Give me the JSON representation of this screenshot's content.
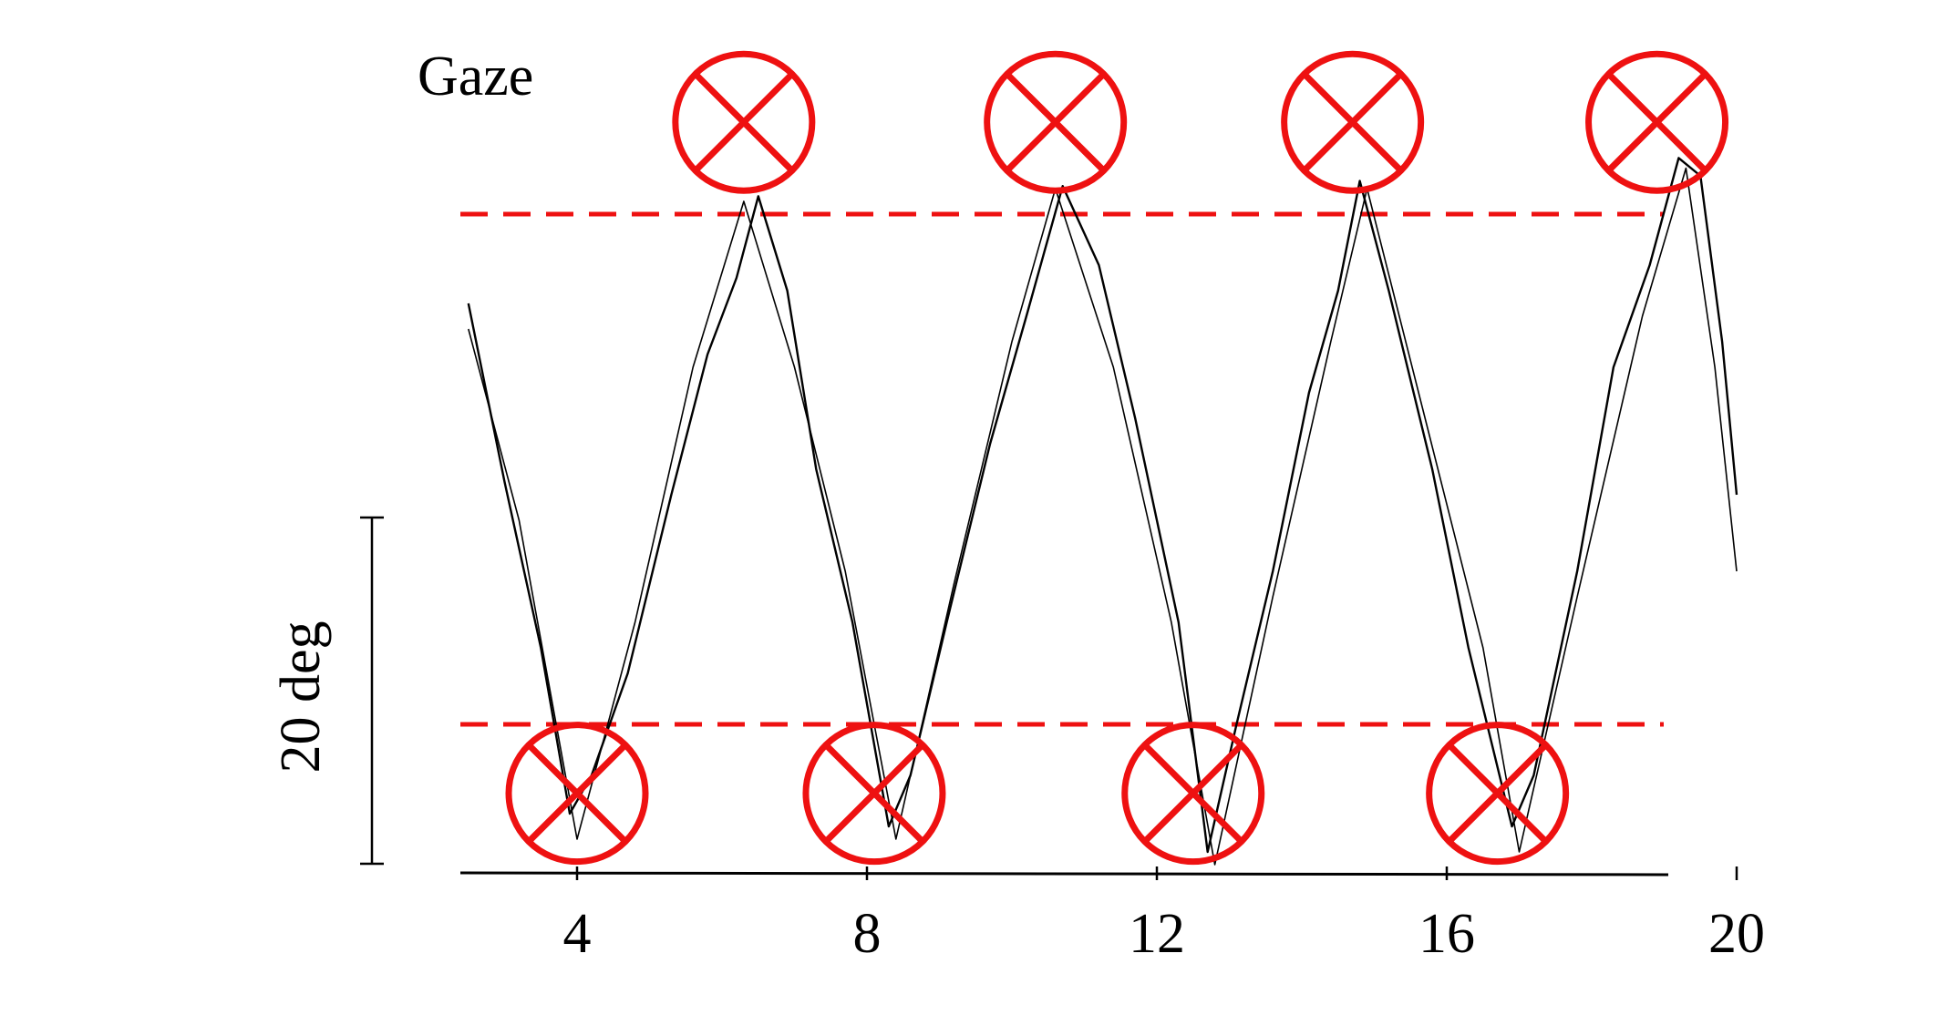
{
  "chart_data": {
    "type": "line",
    "title": "Gaze",
    "xlabel": "",
    "ylabel": "",
    "scale_bar": {
      "label": "20 deg",
      "value": 20
    },
    "x_ticks": [
      "4",
      "8",
      "12",
      "16",
      "20"
    ],
    "xlim": [
      2.5,
      20
    ],
    "ylim": [
      -26,
      6
    ],
    "grid": false,
    "series": [
      {
        "values_xy": [
          [
            2.5,
            -3.5
          ],
          [
            3.0,
            -10.5
          ],
          [
            3.5,
            -17.0
          ],
          [
            3.9,
            -23.5
          ],
          [
            4.2,
            -22.0
          ],
          [
            4.7,
            -18.0
          ],
          [
            5.3,
            -11.0
          ],
          [
            5.8,
            -5.5
          ],
          [
            6.2,
            -2.5
          ],
          [
            6.5,
            0.7
          ],
          [
            6.9,
            -3.0
          ],
          [
            7.3,
            -10.0
          ],
          [
            7.8,
            -16.0
          ],
          [
            8.3,
            -24.0
          ],
          [
            8.6,
            -22.0
          ],
          [
            9.1,
            -16.0
          ],
          [
            9.7,
            -9.0
          ],
          [
            10.2,
            -4.0
          ],
          [
            10.7,
            1.1
          ],
          [
            11.2,
            -2.0
          ],
          [
            11.7,
            -8.0
          ],
          [
            12.3,
            -16.0
          ],
          [
            12.7,
            -25.0
          ],
          [
            13.1,
            -20.0
          ],
          [
            13.6,
            -14.0
          ],
          [
            14.1,
            -7.0
          ],
          [
            14.5,
            -3.0
          ],
          [
            14.8,
            1.3
          ],
          [
            15.2,
            -3.0
          ],
          [
            15.8,
            -10.0
          ],
          [
            16.3,
            -17.0
          ],
          [
            16.9,
            -24.0
          ],
          [
            17.2,
            -22.0
          ],
          [
            17.8,
            -14.0
          ],
          [
            18.3,
            -6.0
          ],
          [
            18.8,
            -2.0
          ],
          [
            19.2,
            2.2
          ],
          [
            19.5,
            1.5
          ],
          [
            19.8,
            -5.0
          ],
          [
            20.0,
            -11.0
          ]
        ]
      },
      {
        "values_xy": [
          [
            2.5,
            -4.5
          ],
          [
            3.2,
            -12.0
          ],
          [
            4.0,
            -24.5
          ],
          [
            4.8,
            -16.0
          ],
          [
            5.6,
            -6.0
          ],
          [
            6.3,
            0.5
          ],
          [
            7.0,
            -6.0
          ],
          [
            7.7,
            -14.0
          ],
          [
            8.4,
            -24.5
          ],
          [
            9.2,
            -14.5
          ],
          [
            10.0,
            -5.0
          ],
          [
            10.6,
            1.0
          ],
          [
            11.4,
            -6.0
          ],
          [
            12.2,
            -16.0
          ],
          [
            12.8,
            -25.5
          ],
          [
            13.6,
            -15.0
          ],
          [
            14.4,
            -5.0
          ],
          [
            14.9,
            1.0
          ],
          [
            15.7,
            -8.0
          ],
          [
            16.5,
            -17.0
          ],
          [
            17.0,
            -25.0
          ],
          [
            17.8,
            -15.0
          ],
          [
            18.7,
            -4.0
          ],
          [
            19.3,
            1.8
          ],
          [
            19.7,
            -6.0
          ],
          [
            20.0,
            -14.0
          ]
        ]
      }
    ],
    "reference_lines": [
      {
        "y": 0,
        "style": "dashed",
        "color": "#ee1111"
      },
      {
        "y": -20,
        "style": "dashed",
        "color": "#ee1111"
      }
    ],
    "markers": [
      {
        "x": 6.3,
        "y": 3.6
      },
      {
        "x": 10.6,
        "y": 3.6
      },
      {
        "x": 14.7,
        "y": 3.6
      },
      {
        "x": 18.9,
        "y": 3.6
      },
      {
        "x": 4.0,
        "y": -22.7
      },
      {
        "x": 8.1,
        "y": -22.7
      },
      {
        "x": 12.5,
        "y": -22.7
      },
      {
        "x": 16.7,
        "y": -22.7
      }
    ],
    "colors": {
      "trace": "#000000",
      "annotation": "#ee1111"
    }
  }
}
